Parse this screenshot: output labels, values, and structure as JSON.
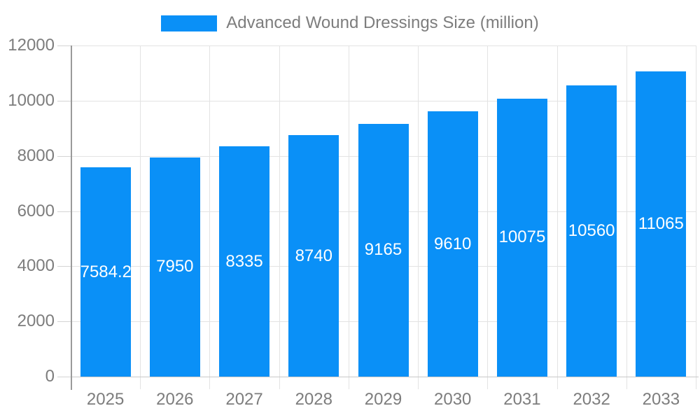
{
  "chart_data": {
    "type": "bar",
    "title": "",
    "legend": [
      "Advanced Wound Dressings Size (million)"
    ],
    "legend_position": "top",
    "categories": [
      "2025",
      "2026",
      "2027",
      "2028",
      "2029",
      "2030",
      "2031",
      "2032",
      "2033"
    ],
    "values": [
      7584.2,
      7950,
      8335,
      8740,
      9165,
      9610,
      10075,
      10560,
      11065
    ],
    "bar_labels": [
      "7584.2",
      "7950",
      "8335",
      "8740",
      "9165",
      "9610",
      "10075",
      "10560",
      "11065"
    ],
    "xlabel": "",
    "ylabel": "",
    "ylim": [
      0,
      12000
    ],
    "ytick_step": 2000,
    "ytick_labels": [
      "0",
      "2000",
      "4000",
      "6000",
      "8000",
      "10000",
      "12000"
    ],
    "grid": true,
    "colors": {
      "bar": "#0a90f7",
      "bar_label": "#ffffff",
      "axis_text": "#7d7d7d",
      "legend_text": "#7d7d7d",
      "y_axis_line": "#9a9a9a",
      "grid_line": "#e3e3e3",
      "zero_line": "#c9c9c9",
      "tick": "#d4d4d4"
    }
  }
}
